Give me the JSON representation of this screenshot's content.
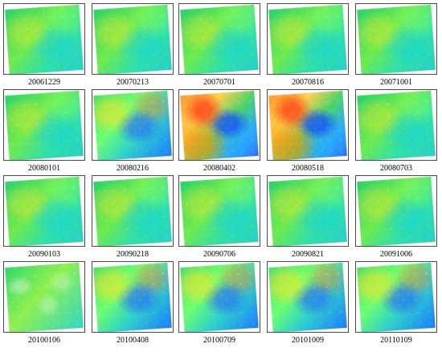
{
  "figure": {
    "tiles": [
      {
        "label": "20061229",
        "style": "cool"
      },
      {
        "label": "20070213",
        "style": "cool"
      },
      {
        "label": "20070701",
        "style": "cool"
      },
      {
        "label": "20070816",
        "style": "cool"
      },
      {
        "label": "20071001",
        "style": "cool"
      },
      {
        "label": "20080101",
        "style": "cool"
      },
      {
        "label": "20080216",
        "style": "mixed"
      },
      {
        "label": "20080402",
        "style": "warm"
      },
      {
        "label": "20080518",
        "style": "warm"
      },
      {
        "label": "20080703",
        "style": "cool"
      },
      {
        "label": "20090103",
        "style": "cool"
      },
      {
        "label": "20090218",
        "style": "cool"
      },
      {
        "label": "20090706",
        "style": "cool"
      },
      {
        "label": "20090821",
        "style": "cool"
      },
      {
        "label": "20091006",
        "style": "cool"
      },
      {
        "label": "20100106",
        "style": "speckle"
      },
      {
        "label": "20100408",
        "style": "mixed"
      },
      {
        "label": "20100709",
        "style": "mixed"
      },
      {
        "label": "20101009",
        "style": "mixed"
      },
      {
        "label": "20110109",
        "style": "mixed"
      }
    ]
  }
}
